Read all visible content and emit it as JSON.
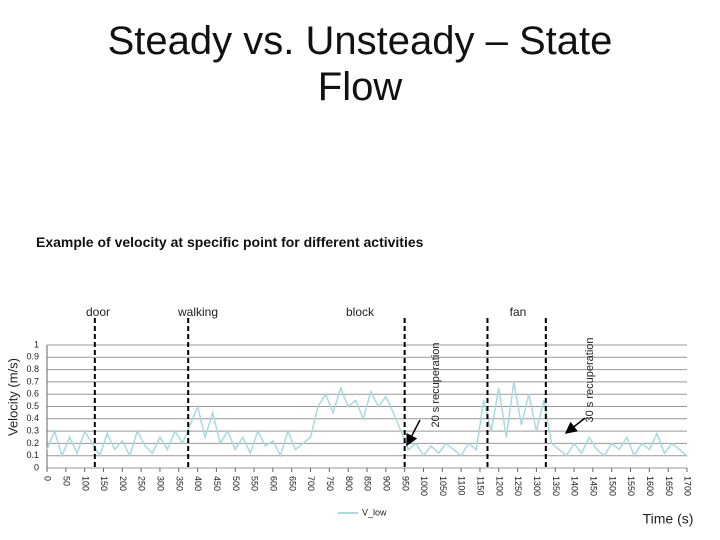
{
  "slide": {
    "title": "Steady vs. Unsteady – State Flow",
    "subtitle": "Example of velocity at specific point for different activities"
  },
  "chart_data": {
    "type": "line",
    "y_label": "Velocity (m/s)",
    "x_label": "Time (s)",
    "x": [
      0,
      20,
      40,
      60,
      80,
      100,
      120,
      140,
      160,
      180,
      200,
      220,
      240,
      260,
      280,
      300,
      320,
      340,
      360,
      380,
      400,
      420,
      440,
      460,
      480,
      500,
      520,
      540,
      560,
      580,
      600,
      620,
      640,
      660,
      680,
      700,
      720,
      740,
      760,
      780,
      800,
      820,
      840,
      860,
      880,
      900,
      920,
      940,
      960,
      980,
      1000,
      1020,
      1040,
      1060,
      1080,
      1100,
      1120,
      1140,
      1160,
      1180,
      1200,
      1220,
      1240,
      1260,
      1280,
      1300,
      1320,
      1340,
      1360,
      1380,
      1400,
      1420,
      1440,
      1460,
      1480,
      1500,
      1520,
      1540,
      1560,
      1580,
      1600,
      1620,
      1640,
      1660,
      1680,
      1700
    ],
    "series": [
      {
        "name": "V_low",
        "color": "#a9d9e1",
        "values": [
          0.15,
          0.3,
          0.1,
          0.25,
          0.12,
          0.3,
          0.2,
          0.1,
          0.28,
          0.15,
          0.22,
          0.1,
          0.3,
          0.18,
          0.12,
          0.25,
          0.15,
          0.3,
          0.2,
          0.35,
          0.5,
          0.25,
          0.45,
          0.2,
          0.3,
          0.15,
          0.25,
          0.12,
          0.3,
          0.18,
          0.22,
          0.1,
          0.3,
          0.15,
          0.2,
          0.25,
          0.5,
          0.6,
          0.45,
          0.65,
          0.5,
          0.55,
          0.4,
          0.62,
          0.5,
          0.58,
          0.45,
          0.3,
          0.15,
          0.2,
          0.1,
          0.18,
          0.12,
          0.2,
          0.15,
          0.1,
          0.2,
          0.15,
          0.55,
          0.3,
          0.65,
          0.25,
          0.7,
          0.35,
          0.6,
          0.3,
          0.55,
          0.2,
          0.15,
          0.1,
          0.2,
          0.12,
          0.25,
          0.15,
          0.1,
          0.2,
          0.15,
          0.25,
          0.1,
          0.2,
          0.15,
          0.28,
          0.12,
          0.2,
          0.15,
          0.1
        ]
      }
    ],
    "xlim": [
      0,
      1700
    ],
    "xticks": [
      0,
      50,
      100,
      150,
      200,
      250,
      300,
      350,
      400,
      450,
      500,
      550,
      600,
      650,
      700,
      750,
      800,
      850,
      900,
      950,
      1000,
      1050,
      1100,
      1150,
      1200,
      1250,
      1300,
      1350,
      1400,
      1450,
      1500,
      1550,
      1600,
      1650,
      1700
    ],
    "ylim": [
      0,
      1
    ],
    "yticks": [
      0,
      0.1,
      0.2,
      0.3,
      0.4,
      0.5,
      0.6,
      0.7,
      0.8,
      0.9,
      1
    ],
    "grid": true,
    "event_lines": [
      127,
      375,
      950,
      1170,
      1325
    ],
    "annotations": [
      "door",
      "walking",
      "block",
      "fan",
      "20 s recuperation",
      "30 s recuperation"
    ]
  }
}
